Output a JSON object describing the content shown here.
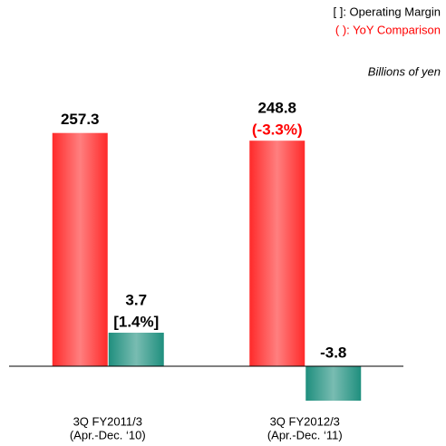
{
  "chart_data": {
    "type": "bar",
    "legend_notes": [
      "[ ]: Operating Margin",
      "( ): YoY Comparison"
    ],
    "unit_note": "Billions of yen",
    "categories": [
      [
        "3Q FY2011/3",
        "(Apr.-Dec. ‘10)"
      ],
      [
        "3Q FY2012/3",
        "(Apr.-Dec. ‘11)"
      ]
    ],
    "series": [
      {
        "color": "#ff2a2a",
        "values": [
          257.3,
          248.8
        ],
        "notes": [
          null,
          "(-3.3%)"
        ],
        "note_color": "#ff0000"
      },
      {
        "color": "#1f8f7e",
        "values": [
          3.7,
          -3.8
        ],
        "notes": [
          "[1.4%]",
          null
        ],
        "axis": "y2"
      }
    ],
    "ylim": [
      -56,
      304
    ],
    "y2lim": [
      -5.6,
      30.4
    ]
  }
}
